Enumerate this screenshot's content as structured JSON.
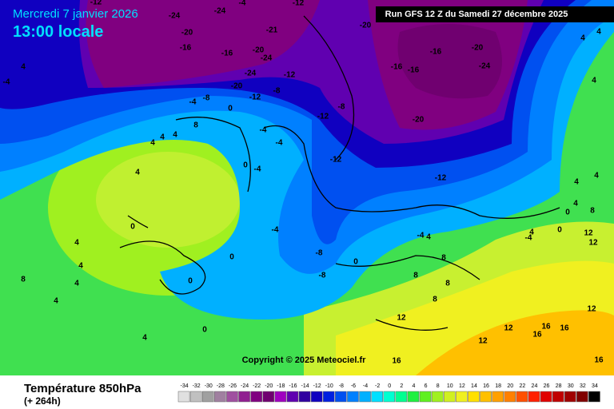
{
  "header": {
    "date": "Mercredi 7 janvier 2026",
    "time": "13:00 locale",
    "run": "Run GFS 12 Z du Samedi 27 décembre 2025",
    "copyright": "Copyright © 2025 Meteociel.fr"
  },
  "map_labels": [
    -12,
    -24,
    -24,
    -4,
    -12,
    -20,
    -16,
    -21,
    -20,
    -16,
    -20,
    -24,
    -16,
    -20,
    -16,
    -16,
    -24,
    -20,
    -24,
    -12,
    -8,
    -12,
    -8,
    -4,
    0,
    -8,
    -12,
    -20,
    -4,
    -4,
    8,
    4,
    4,
    4,
    -12,
    0,
    -4,
    -12,
    4,
    0,
    -4,
    4,
    0,
    -8,
    -8,
    4,
    4,
    8,
    4,
    0,
    0,
    4,
    0,
    -4,
    4,
    8,
    8,
    8,
    12,
    12,
    12,
    12,
    16,
    16,
    16,
    16,
    16,
    12,
    12,
    8,
    4,
    4,
    0,
    -4,
    4,
    0,
    4,
    4,
    4,
    4,
    4,
    -4,
    8
  ],
  "legend": {
    "title": "Température 850hPa",
    "lead": "(+ 264h)",
    "ticks": [
      -34,
      -32,
      -30,
      -28,
      -26,
      -24,
      -22,
      -20,
      -18,
      -16,
      -14,
      -12,
      -10,
      -8,
      -6,
      -4,
      -2,
      0,
      2,
      4,
      6,
      8,
      10,
      12,
      14,
      16,
      18,
      20,
      22,
      24,
      26,
      28,
      30,
      32,
      34
    ],
    "colors": [
      "#e0e0e0",
      "#c0c0c0",
      "#a0a0a0",
      "#a080a0",
      "#a050a0",
      "#902090",
      "#800080",
      "#700070",
      "#a000c0",
      "#6000b0",
      "#3000a0",
      "#1000c0",
      "#0020e0",
      "#0050f0",
      "#0080ff",
      "#00b0ff",
      "#00e0ff",
      "#00ffd0",
      "#00ff90",
      "#20f040",
      "#60f020",
      "#a0f020",
      "#d0f020",
      "#f0f020",
      "#ffe000",
      "#ffc000",
      "#ffa000",
      "#ff8000",
      "#ff5000",
      "#ff2000",
      "#e00000",
      "#c00000",
      "#a00000",
      "#800000",
      "#000000"
    ]
  }
}
